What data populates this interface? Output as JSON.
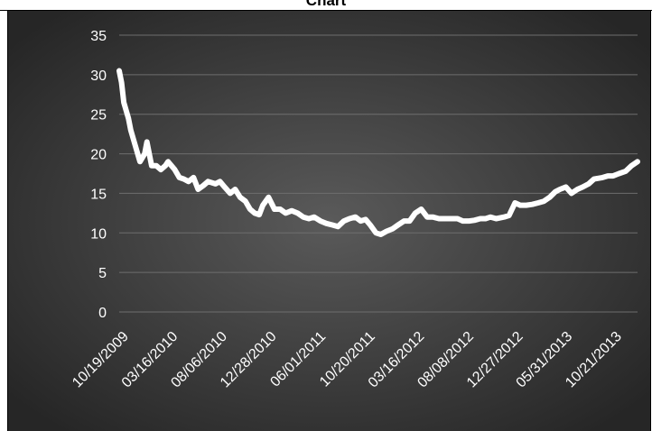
{
  "title": "Chart",
  "chart_data": {
    "type": "line",
    "title": "Chart",
    "xlabel": "",
    "ylabel": "",
    "ylim": [
      0,
      35
    ],
    "yticks": [
      0,
      5,
      10,
      15,
      20,
      25,
      30,
      35
    ],
    "grid": true,
    "legend": "none",
    "xticks": [
      "10/19/2009",
      "03/16/2010",
      "08/06/2010",
      "12/28/2010",
      "06/01/2011",
      "10/20/2011",
      "03/16/2012",
      "08/08/2012",
      "12/27/2012",
      "05/31/2013",
      "10/21/2013"
    ],
    "series": [
      {
        "name": "",
        "color": "#ffffff",
        "x": [
          "2009-10-19",
          "2009-10-26",
          "2009-11-02",
          "2009-11-16",
          "2009-11-23",
          "2009-12-07",
          "2009-12-21",
          "2010-01-04",
          "2010-01-11",
          "2010-01-25",
          "2010-02-08",
          "2010-02-22",
          "2010-03-08",
          "2010-03-16",
          "2010-04-05",
          "2010-04-19",
          "2010-05-03",
          "2010-05-17",
          "2010-06-01",
          "2010-06-15",
          "2010-07-01",
          "2010-07-15",
          "2010-08-06",
          "2010-08-20",
          "2010-09-03",
          "2010-09-20",
          "2010-10-05",
          "2010-10-20",
          "2010-11-05",
          "2010-11-19",
          "2010-12-03",
          "2010-12-17",
          "2010-12-28",
          "2011-01-14",
          "2011-02-01",
          "2011-02-18",
          "2011-03-07",
          "2011-03-25",
          "2011-04-12",
          "2011-04-29",
          "2011-05-16",
          "2011-06-01",
          "2011-06-20",
          "2011-07-08",
          "2011-07-26",
          "2011-08-12",
          "2011-08-30",
          "2011-09-16",
          "2011-10-04",
          "2011-10-20",
          "2011-11-04",
          "2011-11-18",
          "2011-12-05",
          "2011-12-20",
          "2012-01-06",
          "2012-01-24",
          "2012-02-10",
          "2012-02-28",
          "2012-03-16",
          "2012-04-02",
          "2012-04-20",
          "2012-05-08",
          "2012-05-25",
          "2012-06-13",
          "2012-07-02",
          "2012-07-20",
          "2012-08-08",
          "2012-08-24",
          "2012-09-12",
          "2012-09-28",
          "2012-10-16",
          "2012-11-01",
          "2012-11-16",
          "2012-12-03",
          "2012-12-27",
          "2013-01-11",
          "2013-01-29",
          "2013-02-14",
          "2013-03-04",
          "2013-03-22",
          "2013-04-09",
          "2013-04-26",
          "2013-05-14",
          "2013-05-31",
          "2013-06-14",
          "2013-07-02",
          "2013-07-19",
          "2013-08-06",
          "2013-08-22",
          "2013-09-09",
          "2013-09-25",
          "2013-10-21",
          "2013-11-06",
          "2013-11-22",
          "2013-12-10",
          "2013-12-30",
          "2014-01-17",
          "2014-02-04"
        ],
        "values": [
          30.5,
          29,
          26.5,
          24.5,
          23,
          21,
          19,
          20,
          21.5,
          18.5,
          18.5,
          18,
          18.5,
          19,
          18,
          17,
          16.8,
          16.5,
          17,
          15.5,
          16,
          16.5,
          16.2,
          16.5,
          15.8,
          15,
          15.5,
          14.5,
          14,
          13,
          12.5,
          12.3,
          13.5,
          14.5,
          13,
          13,
          12.5,
          12.8,
          12.5,
          12,
          11.8,
          12,
          11.5,
          11.2,
          11,
          10.8,
          11.5,
          11.8,
          12,
          11.5,
          11.7,
          11,
          10,
          9.8,
          10.2,
          10.5,
          11,
          11.5,
          11.5,
          12.5,
          13,
          12,
          12,
          11.8,
          11.8,
          11.8,
          11.8,
          11.5,
          11.5,
          11.6,
          11.8,
          11.8,
          12,
          11.8,
          12,
          12.2,
          13.8,
          13.5,
          13.5,
          13.6,
          13.8,
          14,
          14.5,
          15.2,
          15.5,
          15.8,
          15,
          15.5,
          15.8,
          16.2,
          16.8,
          17,
          17.2,
          17.2,
          17.5,
          17.8,
          18.5,
          19
        ]
      }
    ]
  }
}
